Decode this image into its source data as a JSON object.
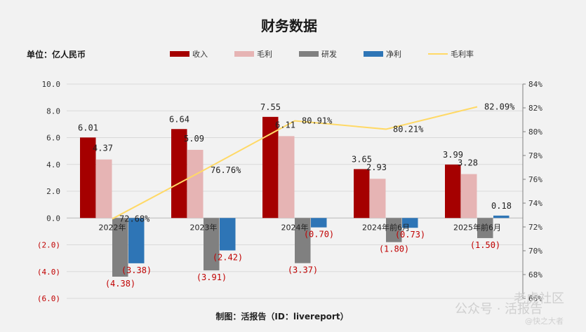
{
  "chart_data": {
    "type": "bar",
    "title": "财务数据",
    "unit_label": "单位：亿人民币",
    "source": "制图：活报告（ID：livereport）",
    "categories": [
      "2022年",
      "2023年",
      "2024年",
      "2024年前6月",
      "2025年前6月"
    ],
    "series": [
      {
        "name": "收入",
        "color": "#a50000",
        "kind": "bar",
        "values": [
          6.01,
          6.64,
          7.55,
          3.65,
          3.99
        ]
      },
      {
        "name": "毛利",
        "color": "#e6b4b4",
        "kind": "bar",
        "values": [
          4.37,
          5.09,
          6.11,
          2.93,
          3.28
        ]
      },
      {
        "name": "研发",
        "color": "#808080",
        "kind": "bar",
        "values": [
          -4.38,
          -3.91,
          -3.37,
          -1.8,
          -1.5
        ]
      },
      {
        "name": "净利",
        "color": "#2e75b6",
        "kind": "bar",
        "values": [
          -3.38,
          -2.42,
          -0.7,
          -0.73,
          0.18
        ]
      },
      {
        "name": "毛利率",
        "color": "#ffd966",
        "kind": "line",
        "axis": "right",
        "values": [
          72.68,
          76.76,
          80.91,
          80.21,
          82.09
        ]
      }
    ],
    "data_labels": [
      [
        "6.01",
        "6.64",
        "7.55",
        "3.65",
        "3.99"
      ],
      [
        "4.37",
        "5.09",
        "6.11",
        "2.93",
        "3.28"
      ],
      [
        "(4.38)",
        "(3.91)",
        "(3.37)",
        "(1.80)",
        "(1.50)"
      ],
      [
        "(3.38)",
        "(2.42)",
        "(0.70)",
        "(0.73)",
        "0.18"
      ],
      [
        "72.68%",
        "76.76%",
        "80.91%",
        "80.21%",
        "82.09%"
      ]
    ],
    "y_left": {
      "min": -6,
      "max": 10,
      "step": 2,
      "tick_labels": [
        "10.0",
        "8.0",
        "6.0",
        "4.0",
        "2.0",
        "0.0",
        "(2.0)",
        "(4.0)",
        "(6.0)"
      ]
    },
    "y_right": {
      "min": 66,
      "max": 84,
      "step": 2,
      "tick_labels": [
        "84%",
        "82%",
        "80%",
        "78%",
        "76%",
        "74%",
        "72%",
        "70%",
        "68%",
        "66%"
      ]
    },
    "grid": true,
    "legend_position": "top"
  },
  "watermark": {
    "line1": "老虎社区",
    "line2": "公众号 · 活报告",
    "line3": "@快之大者"
  }
}
